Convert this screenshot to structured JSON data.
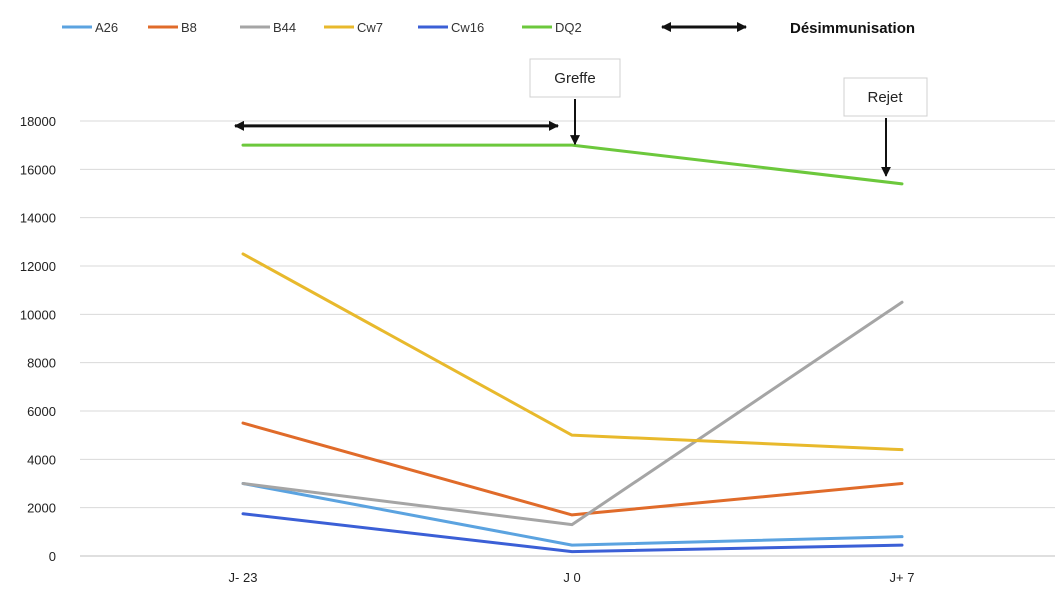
{
  "chart_data": {
    "type": "line",
    "categories": [
      "J- 23",
      "J 0",
      "J+ 7"
    ],
    "ylim": [
      0,
      18000
    ],
    "yticks": [
      0,
      2000,
      4000,
      6000,
      8000,
      10000,
      12000,
      14000,
      16000,
      18000
    ],
    "grid": true,
    "legend_position": "top",
    "series": [
      {
        "name": "A26",
        "color": "#5ba3e0",
        "values": [
          3000,
          450,
          800
        ]
      },
      {
        "name": "B8",
        "color": "#e06b2a",
        "values": [
          5500,
          1700,
          3000
        ]
      },
      {
        "name": "B44",
        "color": "#a5a5a5",
        "values": [
          3000,
          1300,
          10500
        ]
      },
      {
        "name": "Cw7",
        "color": "#e8b92c",
        "values": [
          12500,
          5000,
          4400
        ]
      },
      {
        "name": "Cw16",
        "color": "#3b5fd6",
        "values": [
          1750,
          180,
          450
        ]
      },
      {
        "name": "DQ2",
        "color": "#6cc83c",
        "values": [
          17000,
          17000,
          15400
        ]
      }
    ],
    "annotations": {
      "desimmunisation_label": "Désimmunisation",
      "greffe_label": "Greffe",
      "rejet_label": "Rejet",
      "range_arrow": {
        "from_category": "J- 23",
        "to_category": "J 0",
        "value": 17800
      },
      "greffe_arrow": {
        "category": "J 0",
        "value": 17000
      },
      "rejet_arrow": {
        "category": "J+ 7",
        "value": 15400
      }
    }
  }
}
